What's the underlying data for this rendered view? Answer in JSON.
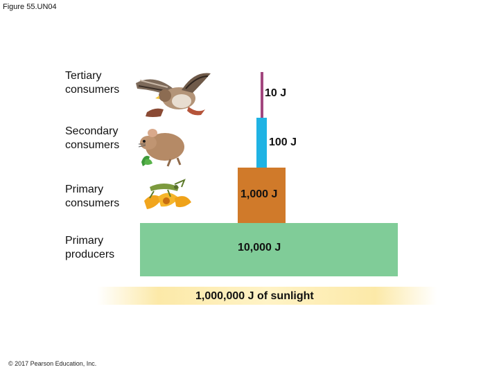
{
  "figure_label": "Figure 55.UN04",
  "copyright": "© 2017 Pearson Education, Inc.",
  "levels": [
    {
      "label": "Tertiary\nconsumers",
      "energy": "10 J",
      "organism_icon": "hawk-icon",
      "bar_color": "#a2467e"
    },
    {
      "label": "Secondary\nconsumers",
      "energy": "100 J",
      "organism_icon": "mouse-icon",
      "bar_color": "#1fb3e4"
    },
    {
      "label": "Primary\nconsumers",
      "energy": "1,000 J",
      "organism_icon": "grasshopper-icon",
      "bar_color": "#d07a2a"
    },
    {
      "label": "Primary\nproducers",
      "energy": "10,000 J",
      "organism_icon": "flower-icon",
      "bar_color": "#80cc98"
    }
  ],
  "sunlight": "1,000,000 J of sunlight",
  "sunlight_color": "#fce9a8"
}
